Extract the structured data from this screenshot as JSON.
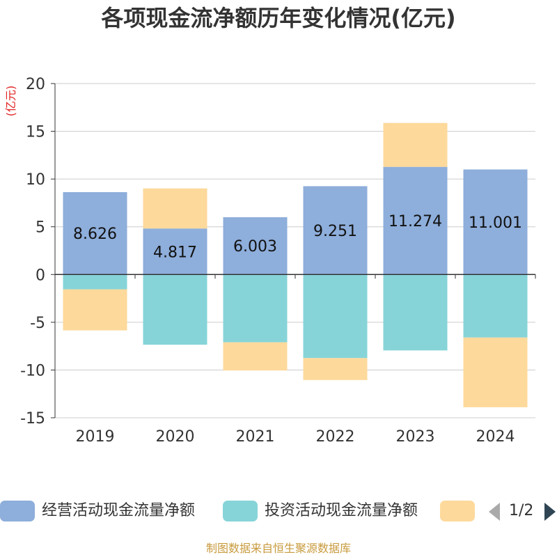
{
  "chart_data": {
    "type": "bar",
    "stacked": true,
    "title": "各项现金流净额历年变化情况(亿元)",
    "unit_label": "(亿元)",
    "categories": [
      "2019",
      "2020",
      "2021",
      "2022",
      "2023",
      "2024"
    ],
    "ylim": [
      -15,
      20
    ],
    "yticks": [
      20,
      15,
      10,
      5,
      0,
      -5,
      -10,
      -15
    ],
    "grid": true,
    "legend_position": "bottom",
    "series": [
      {
        "name": "经营活动现金流量净额",
        "color": "#8eaedb",
        "values": [
          8.626,
          4.817,
          6.003,
          9.251,
          11.274,
          11.001
        ],
        "data_labels": [
          "8.626",
          "4.817",
          "6.003",
          "9.251",
          "11.274",
          "11.001"
        ]
      },
      {
        "name": "投资活动现金流量净额",
        "color": "#86d4d8",
        "values": [
          -1.55,
          -7.35,
          -7.1,
          -8.75,
          -7.95,
          -6.6
        ]
      },
      {
        "name": "",
        "color": "#fdd99b",
        "values": [
          -4.3,
          4.2,
          -2.95,
          -2.3,
          4.6,
          -7.3
        ]
      }
    ]
  },
  "legend": {
    "items": [
      {
        "label": "经营活动现金流量净额",
        "color": "#8eaedb"
      },
      {
        "label": "投资活动现金流量净额",
        "color": "#86d4d8"
      },
      {
        "label": "",
        "color": "#fdd99b"
      }
    ],
    "pager": "1/2",
    "pager_prev_color": "#aaaaaa",
    "pager_next_color": "#2f4554"
  },
  "footer": {
    "text": "制图数据来自恒生聚源数据库",
    "color": "#c89a3c"
  },
  "colors": {
    "unit_label": "#e02020",
    "axis": "#333333",
    "grid": "#cccccc"
  }
}
